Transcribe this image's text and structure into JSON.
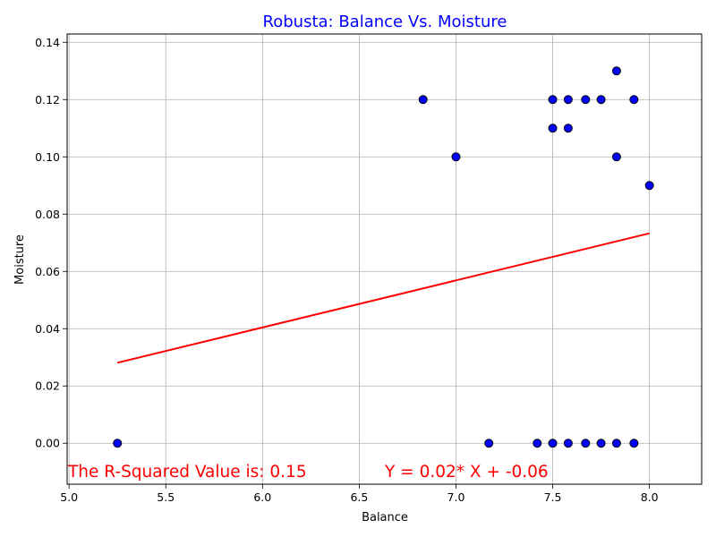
{
  "chart_data": {
    "type": "scatter",
    "title": "Robusta: Balance Vs. Moisture",
    "title_color": "#0000ff",
    "xlabel": "Balance",
    "ylabel": "Moisture",
    "xlim": [
      4.99,
      8.27
    ],
    "ylim": [
      -0.0143,
      0.1429
    ],
    "xticks": [
      "5.0",
      "5.5",
      "6.0",
      "6.5",
      "7.0",
      "7.5",
      "8.0"
    ],
    "xtick_values": [
      5.0,
      5.5,
      6.0,
      6.5,
      7.0,
      7.5,
      8.0
    ],
    "yticks": [
      "0.00",
      "0.02",
      "0.04",
      "0.06",
      "0.08",
      "0.10",
      "0.12",
      "0.14"
    ],
    "ytick_values": [
      0.0,
      0.02,
      0.04,
      0.06,
      0.08,
      0.1,
      0.12,
      0.14
    ],
    "grid": true,
    "point_color": "#0000ff",
    "point_edge_color": "#000000",
    "line_color": "#ff0000",
    "annotation_color": "#ff0000",
    "points": [
      {
        "x": 5.25,
        "y": 0.0
      },
      {
        "x": 6.83,
        "y": 0.12
      },
      {
        "x": 7.0,
        "y": 0.1
      },
      {
        "x": 7.17,
        "y": 0.0
      },
      {
        "x": 7.42,
        "y": 0.0
      },
      {
        "x": 7.5,
        "y": 0.12
      },
      {
        "x": 7.5,
        "y": 0.11
      },
      {
        "x": 7.5,
        "y": 0.0
      },
      {
        "x": 7.58,
        "y": 0.12
      },
      {
        "x": 7.58,
        "y": 0.11
      },
      {
        "x": 7.58,
        "y": 0.0
      },
      {
        "x": 7.67,
        "y": 0.12
      },
      {
        "x": 7.67,
        "y": 0.0
      },
      {
        "x": 7.75,
        "y": 0.12
      },
      {
        "x": 7.75,
        "y": 0.0
      },
      {
        "x": 7.83,
        "y": 0.13
      },
      {
        "x": 7.83,
        "y": 0.1
      },
      {
        "x": 7.83,
        "y": 0.0
      },
      {
        "x": 7.92,
        "y": 0.12
      },
      {
        "x": 7.92,
        "y": 0.0
      },
      {
        "x": 8.0,
        "y": 0.09
      }
    ],
    "regression": {
      "x": [
        5.25,
        8.0
      ],
      "y": [
        0.0281,
        0.0733
      ]
    },
    "annotations": {
      "r_squared": "The R-Squared Value is: 0.15",
      "equation": "Y = 0.02* X + -0.06"
    }
  }
}
